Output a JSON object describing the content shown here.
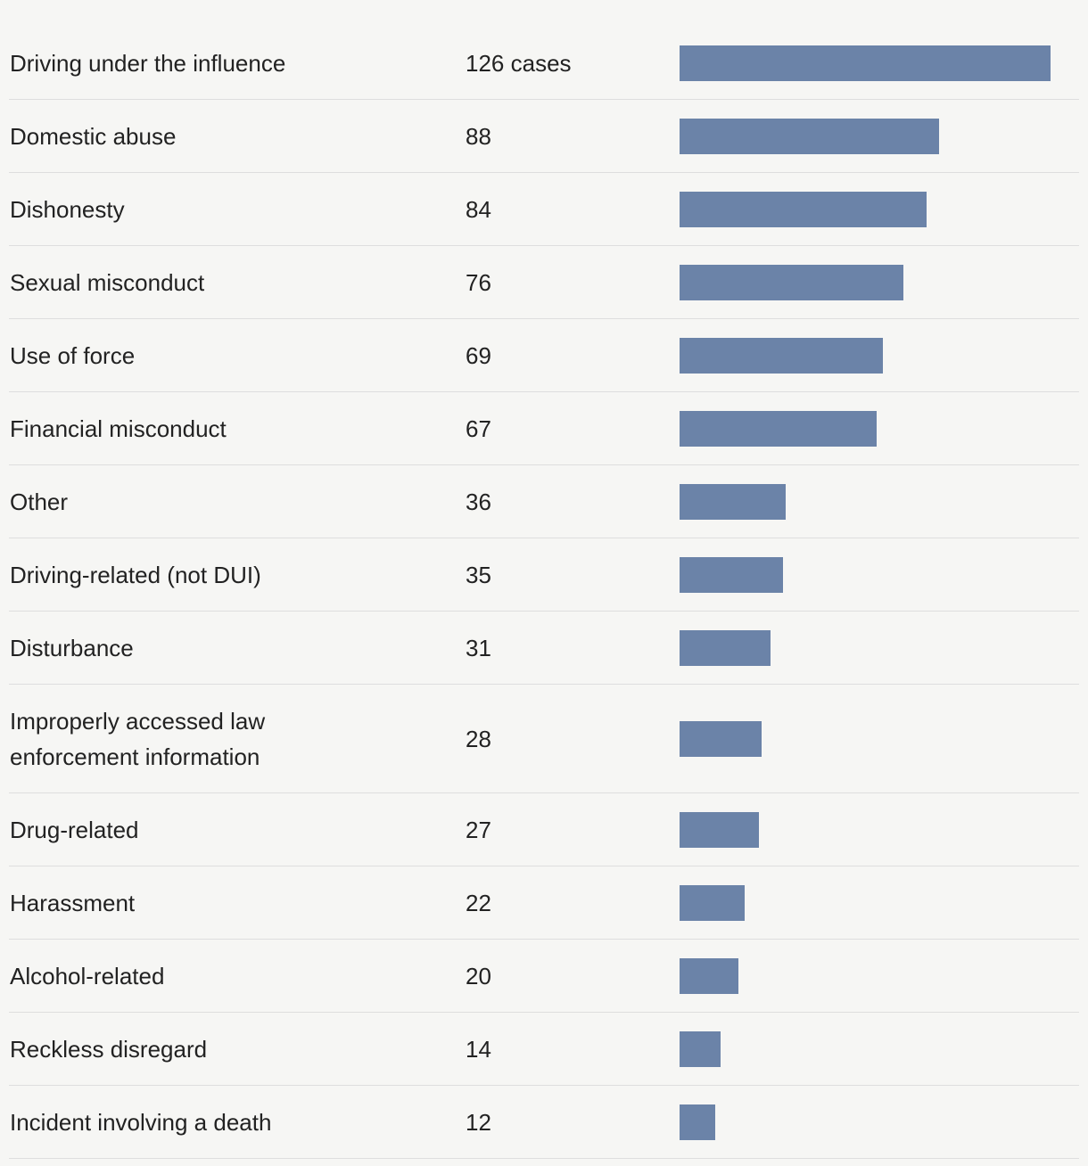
{
  "chart_data": {
    "type": "bar",
    "orientation": "horizontal",
    "categories": [
      "Driving under the influence",
      "Domestic abuse",
      "Dishonesty",
      "Sexual misconduct",
      "Use of force",
      "Financial misconduct",
      "Other",
      "Driving-related (not DUI)",
      "Disturbance",
      "Improperly accessed law enforcement information",
      "Drug-related",
      "Harassment",
      "Alcohol-related",
      "Reckless disregard",
      "Incident involving a death"
    ],
    "values": [
      126,
      88,
      84,
      76,
      69,
      67,
      36,
      35,
      31,
      28,
      27,
      22,
      20,
      14,
      12
    ],
    "value_labels": [
      "126 cases",
      "88",
      "84",
      "76",
      "69",
      "67",
      "36",
      "35",
      "31",
      "28",
      "27",
      "22",
      "20",
      "14",
      "12"
    ],
    "title": "",
    "xlabel": "",
    "ylabel": "",
    "xlim": [
      0,
      126
    ],
    "grid": false,
    "legend": "none",
    "bar_color": "#6b83a8"
  }
}
